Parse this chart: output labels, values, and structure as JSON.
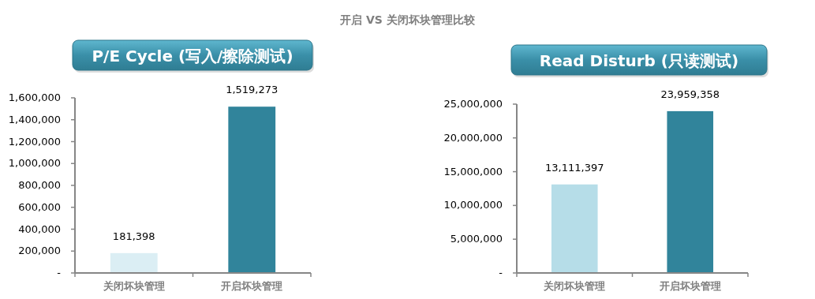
{
  "chart_data": [
    {
      "type": "bar",
      "title": "P/E Cycle (写入/擦除测试)",
      "annotations": [
        "开启 VS 关闭坏块管理比较"
      ],
      "categories": [
        "关闭坏块管理",
        "开启坏块管理"
      ],
      "values": [
        181398,
        1519273
      ],
      "colors": [
        "#dbeef4",
        "#31849b"
      ],
      "value_labels": [
        "181,398",
        "1,519,273"
      ],
      "ylim": [
        0,
        1600000
      ],
      "yticks": [
        {
          "value": 0,
          "label": "-"
        },
        {
          "value": 200000,
          "label": "200,000"
        },
        {
          "value": 400000,
          "label": "400,000"
        },
        {
          "value": 600000,
          "label": "600,000"
        },
        {
          "value": 800000,
          "label": "800,000"
        },
        {
          "value": 1000000,
          "label": "1,000,000"
        },
        {
          "value": 1200000,
          "label": "1,200,000"
        },
        {
          "value": 1400000,
          "label": "1,400,000"
        },
        {
          "value": 1600000,
          "label": "1,600,000"
        }
      ]
    },
    {
      "type": "bar",
      "title": "Read Disturb (只读测试)",
      "categories": [
        "关闭坏块管理",
        "开启坏块管理"
      ],
      "values": [
        13111397,
        23959358
      ],
      "colors": [
        "#b6dde8",
        "#31849b"
      ],
      "value_labels": [
        "13,111,397",
        "23,959,358"
      ],
      "ylim": [
        0,
        25000000
      ],
      "yticks": [
        {
          "value": 0,
          "label": "-"
        },
        {
          "value": 5000000,
          "label": "5,000,000"
        },
        {
          "value": 10000000,
          "label": "10,000,000"
        },
        {
          "value": 15000000,
          "label": "15,000,000"
        },
        {
          "value": 20000000,
          "label": "20,000,000"
        },
        {
          "value": 25000000,
          "label": "25,000,000"
        }
      ]
    }
  ]
}
